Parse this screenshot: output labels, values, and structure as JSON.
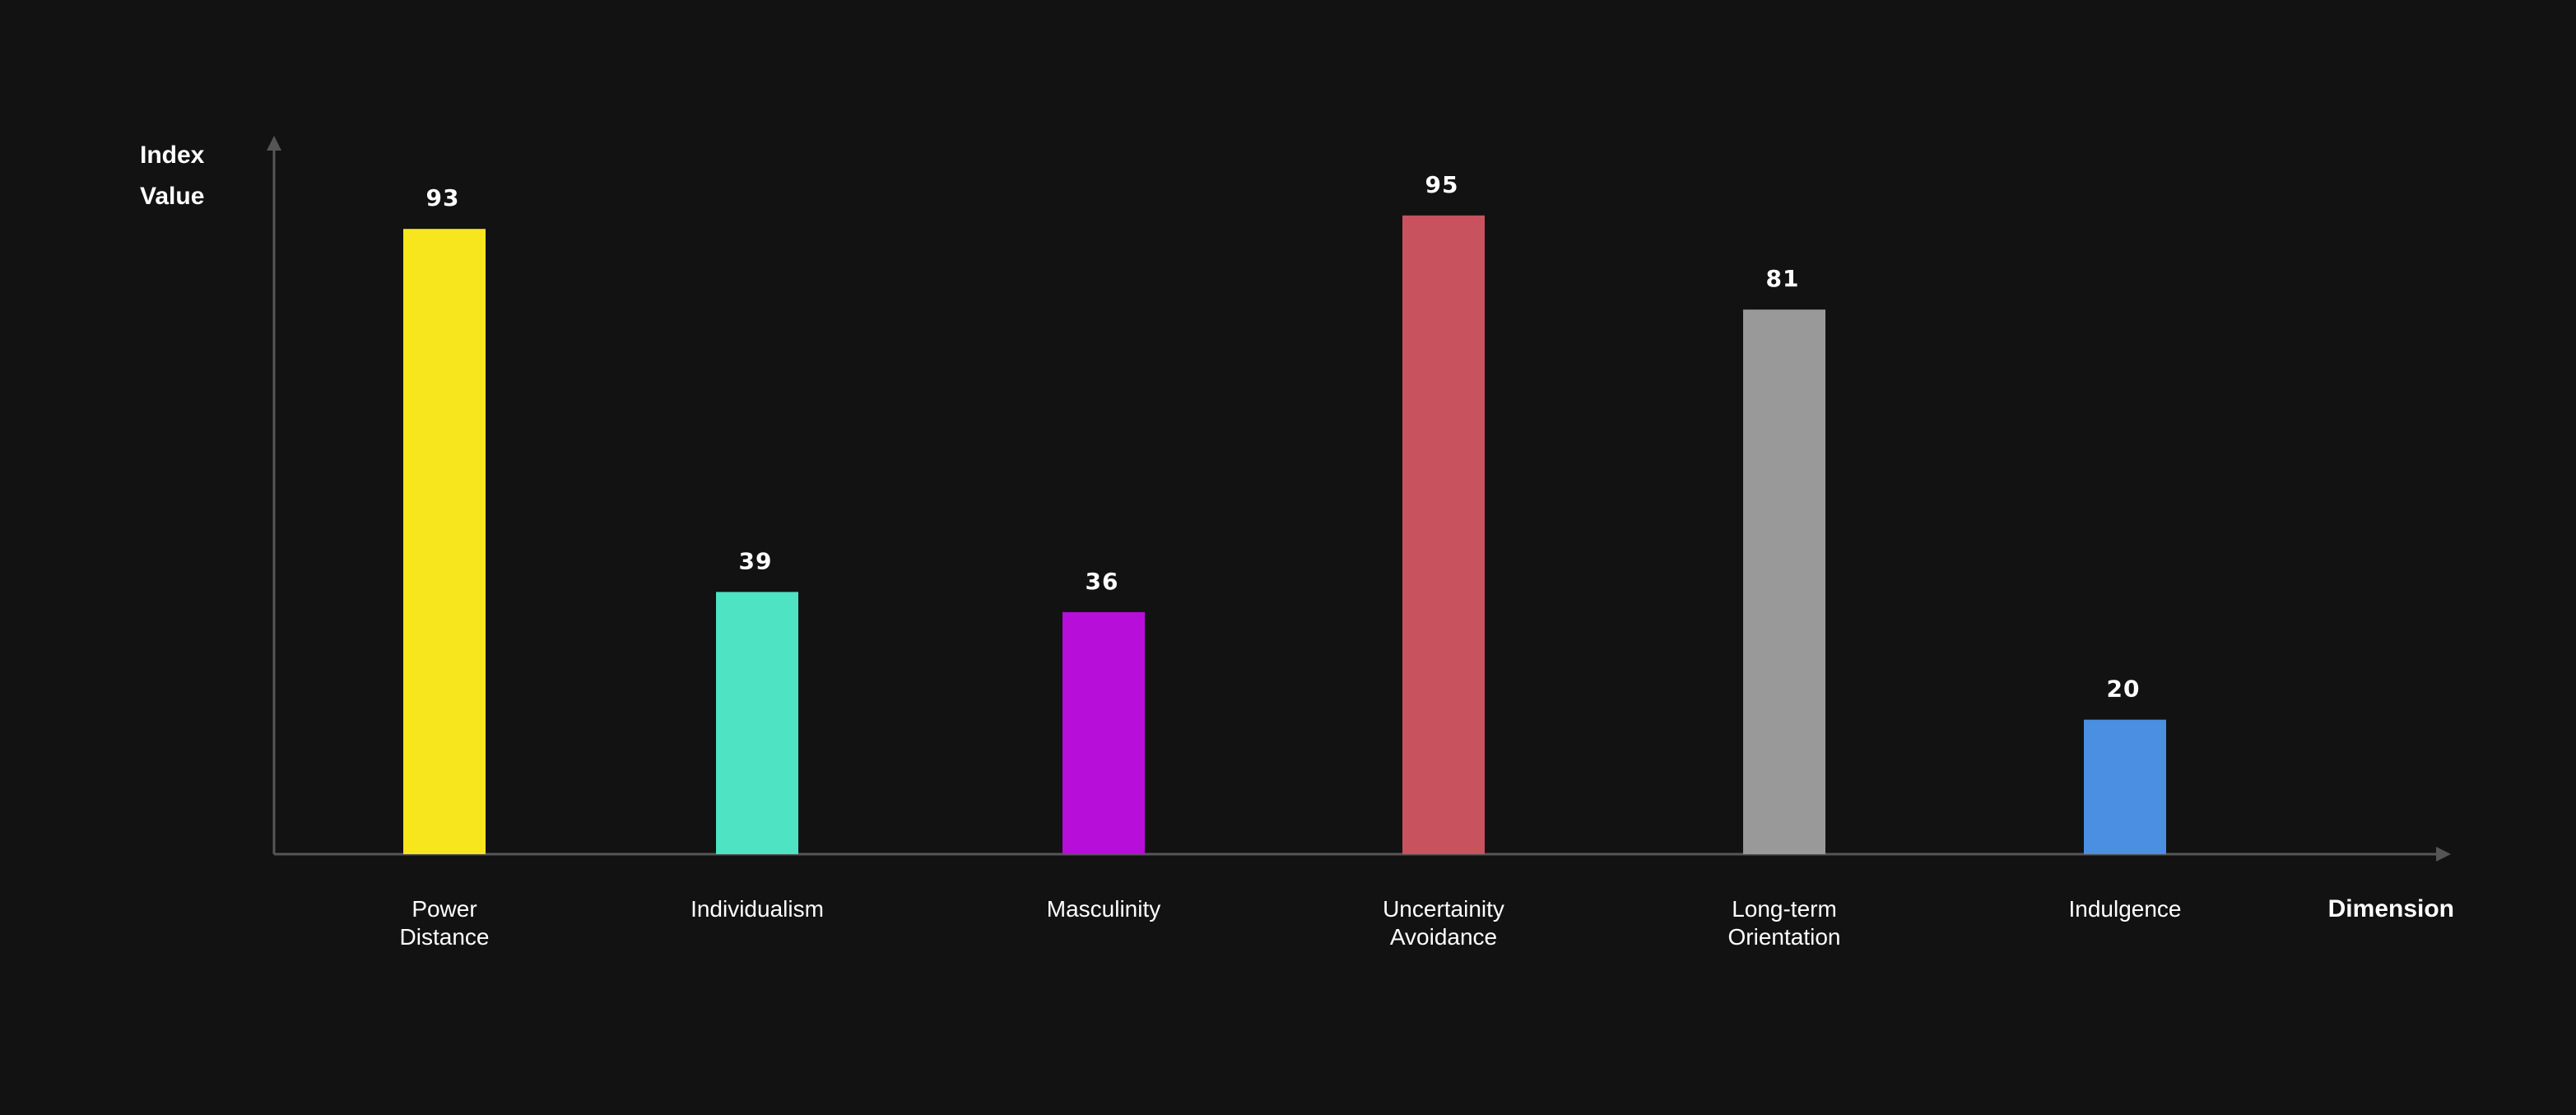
{
  "chart_data": {
    "type": "bar",
    "ylabel_lines": [
      "Index",
      "Value"
    ],
    "xlabel": "Dimension",
    "categories": [
      [
        "Power",
        "Distance"
      ],
      [
        "Individualism"
      ],
      [
        "Masculinity"
      ],
      [
        "Uncertainity",
        "Avoidance"
      ],
      [
        "Long-term",
        "Orientation"
      ],
      [
        "Indulgence"
      ]
    ],
    "values": [
      93,
      39,
      36,
      95,
      81,
      20
    ],
    "value_labels": [
      "93",
      "39",
      "36",
      "95",
      "81",
      "20"
    ],
    "colors": [
      "#F7E51D",
      "#4DE3C3",
      "#B80ED9",
      "#C9525F",
      "#999999",
      "#4A8FE1"
    ],
    "ylim": [
      0,
      100
    ],
    "grid": false,
    "legend": "none",
    "axis_color": "#555555",
    "background": "#121212"
  }
}
